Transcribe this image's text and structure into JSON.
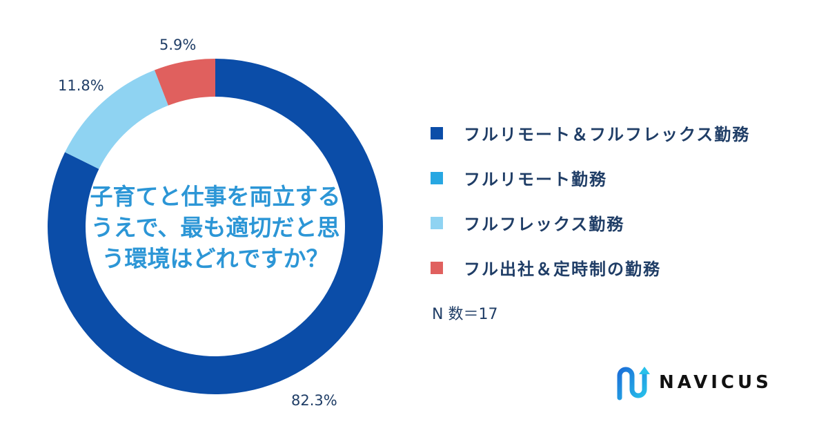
{
  "chart_data": {
    "type": "pie",
    "title": "子育てと仕事を両立する\nうえで、最も適切だと思\nう環境はどれですか？",
    "categories": [
      "フルリモート＆フルフレックス勤務",
      "フルリモート勤務",
      "フルフレックス勤務",
      "フル出社＆定時制の勤務"
    ],
    "values": [
      82.3,
      0,
      11.8,
      5.9
    ],
    "value_labels": [
      "82.3%",
      "",
      "11.8%",
      "5.9%"
    ],
    "colors": [
      "#0b4da8",
      "#27a7e2",
      "#8fd3f2",
      "#e0605e"
    ],
    "legend_position": "right"
  },
  "sample_size": "N 数＝17",
  "brand": {
    "name": "NAVICUS"
  }
}
